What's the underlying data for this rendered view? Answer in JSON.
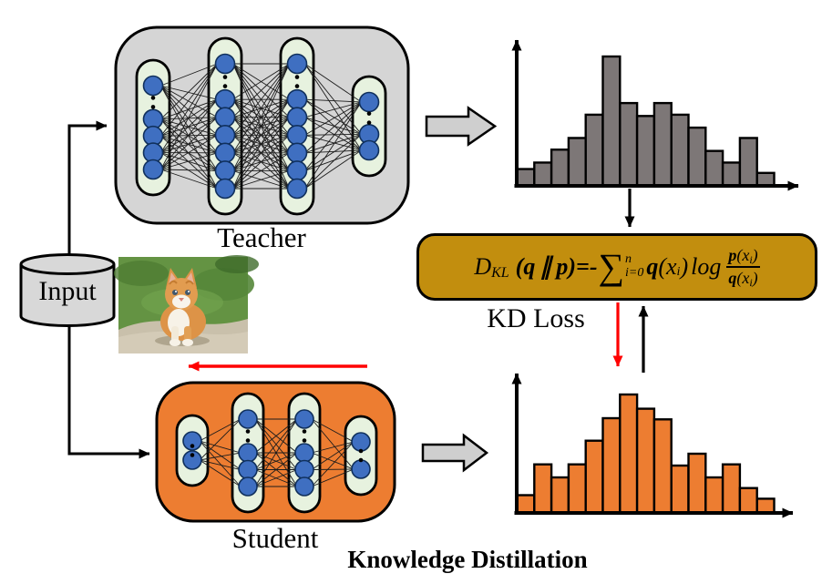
{
  "labels": {
    "input": "Input",
    "kd_loss": "KD Loss",
    "title": "Knowledge Distillation"
  },
  "formula": {
    "text": "D_KL (q ∥ p) = -Σ_{i=0}^{n} q(x_i) log( p(x_i) / q(x_i) )",
    "D": "D",
    "D_sub": "KL",
    "t_open": "(",
    "q1": "q",
    "parallel": "∥",
    "p1": "p",
    "t_close_eq": ")=-",
    "sigma": "∑",
    "sigma_sup": "n",
    "sigma_sub": "i=0",
    "q2": "q",
    "x_open": "(x",
    "i1": "i",
    "x_close": ")",
    "log": "log",
    "num_p": "p",
    "num_open": "(x",
    "num_i": "i",
    "num_close": ")",
    "den_q": "q",
    "den_open": "(x",
    "den_i": "i",
    "den_close": ")"
  },
  "networks": {
    "teacher": {
      "label": "Teacher",
      "layers": [
        {
          "visible_nodes": 5,
          "ellipsis": true
        },
        {
          "visible_nodes": 7,
          "ellipsis": true
        },
        {
          "visible_nodes": 7,
          "ellipsis": true
        },
        {
          "visible_nodes": 3,
          "ellipsis": true
        }
      ]
    },
    "student": {
      "label": "Student",
      "layers": [
        {
          "visible_nodes": 2,
          "ellipsis": true
        },
        {
          "visible_nodes": 4,
          "ellipsis": true
        },
        {
          "visible_nodes": 4,
          "ellipsis": true
        },
        {
          "visible_nodes": 2,
          "ellipsis": true
        }
      ]
    }
  },
  "chart_data": [
    {
      "type": "bar",
      "name": "teacher-output-distribution",
      "title": "",
      "xlabel": "",
      "ylabel": "",
      "ylim": [
        0,
        1
      ],
      "grid": false,
      "legend": false,
      "values": [
        0.13,
        0.18,
        0.28,
        0.37,
        0.55,
        1.0,
        0.64,
        0.54,
        0.64,
        0.55,
        0.45,
        0.27,
        0.18,
        0.37,
        0.1
      ],
      "color": "#7D7777"
    },
    {
      "type": "bar",
      "name": "student-output-distribution",
      "title": "",
      "xlabel": "",
      "ylabel": "",
      "ylim": [
        0,
        1
      ],
      "grid": false,
      "legend": false,
      "values": [
        0.15,
        0.41,
        0.3,
        0.41,
        0.61,
        0.8,
        1.0,
        0.88,
        0.79,
        0.4,
        0.5,
        0.3,
        0.41,
        0.21,
        0.12
      ],
      "color": "#ED7D31"
    }
  ],
  "colors": {
    "teacher_box": "#D5D5D5",
    "student_box": "#ED7D31",
    "layer_pill": "#E7F2DF",
    "node_fill": "#3F6FC1",
    "node_stroke": "#10305C",
    "teacher_bar": "#7D7777",
    "student_bar": "#ED7D31",
    "formula_box": "#C28E0E",
    "block_arrow": "#CFCFCF",
    "cylinder": "#D8D8D8",
    "arrow_black": "#000000",
    "arrow_red": "#FF0000"
  }
}
